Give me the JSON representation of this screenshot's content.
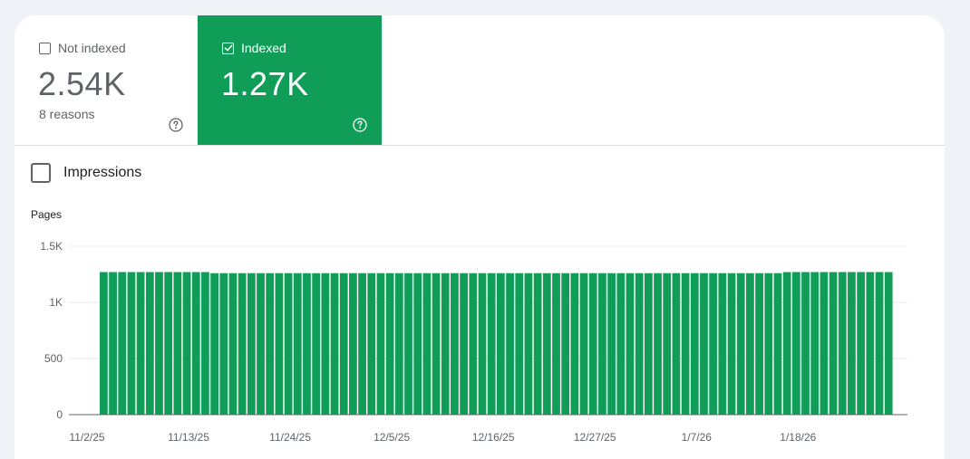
{
  "tiles": {
    "not_indexed": {
      "label": "Not indexed",
      "value": "2.54K",
      "sub": "8 reasons"
    },
    "indexed": {
      "label": "Indexed",
      "value": "1.27K"
    }
  },
  "impressions": {
    "label": "Impressions"
  },
  "colors": {
    "accent": "#0f9d58",
    "text_muted": "#5f6368"
  },
  "chart_data": {
    "type": "bar",
    "ylabel": "Pages",
    "ylim": [
      0,
      1500
    ],
    "yticks": [
      0,
      500,
      1000,
      1500
    ],
    "ytick_labels": [
      "0",
      "500",
      "1K",
      "1.5K"
    ],
    "x_tick_labels": [
      "11/2/25",
      "11/13/25",
      "11/24/25",
      "12/5/25",
      "12/16/25",
      "12/27/25",
      "1/7/26",
      "1/18/26"
    ],
    "categories": [
      "11/3/25",
      "11/4/25",
      "11/5/25",
      "11/6/25",
      "11/7/25",
      "11/8/25",
      "11/9/25",
      "11/10/25",
      "11/11/25",
      "11/12/25",
      "11/13/25",
      "11/14/25",
      "11/15/25",
      "11/16/25",
      "11/17/25",
      "11/18/25",
      "11/19/25",
      "11/20/25",
      "11/21/25",
      "11/22/25",
      "11/23/25",
      "11/24/25",
      "11/25/25",
      "11/26/25",
      "11/27/25",
      "11/28/25",
      "11/29/25",
      "11/30/25",
      "12/1/25",
      "12/2/25",
      "12/3/25",
      "12/4/25",
      "12/5/25",
      "12/6/25",
      "12/7/25",
      "12/8/25",
      "12/9/25",
      "12/10/25",
      "12/11/25",
      "12/12/25",
      "12/13/25",
      "12/14/25",
      "12/15/25",
      "12/16/25",
      "12/17/25",
      "12/18/25",
      "12/19/25",
      "12/20/25",
      "12/21/25",
      "12/22/25",
      "12/23/25",
      "12/24/25",
      "12/25/25",
      "12/26/25",
      "12/27/25",
      "12/28/25",
      "12/29/25",
      "12/30/25",
      "12/31/25",
      "1/1/26",
      "1/2/26",
      "1/3/26",
      "1/4/26",
      "1/5/26",
      "1/6/26",
      "1/7/26",
      "1/8/26",
      "1/9/26",
      "1/10/26",
      "1/11/26",
      "1/12/26",
      "1/13/26",
      "1/14/26",
      "1/15/26",
      "1/16/26",
      "1/17/26",
      "1/18/26",
      "1/19/26",
      "1/20/26",
      "1/21/26",
      "1/22/26",
      "1/23/26",
      "1/24/26",
      "1/25/26",
      "1/26/26",
      "1/27/26"
    ],
    "values": [
      1270,
      1270,
      1270,
      1270,
      1270,
      1270,
      1270,
      1270,
      1270,
      1270,
      1270,
      1270,
      1260,
      1260,
      1260,
      1260,
      1260,
      1260,
      1260,
      1260,
      1260,
      1260,
      1260,
      1260,
      1260,
      1260,
      1260,
      1260,
      1260,
      1260,
      1260,
      1260,
      1260,
      1260,
      1260,
      1260,
      1260,
      1260,
      1260,
      1260,
      1260,
      1260,
      1260,
      1260,
      1260,
      1260,
      1260,
      1260,
      1260,
      1260,
      1260,
      1260,
      1260,
      1260,
      1260,
      1260,
      1260,
      1260,
      1260,
      1260,
      1260,
      1260,
      1260,
      1260,
      1260,
      1260,
      1260,
      1260,
      1260,
      1260,
      1260,
      1260,
      1260,
      1260,
      1270,
      1270,
      1270,
      1270,
      1270,
      1270,
      1270,
      1270,
      1270,
      1270,
      1270,
      1270
    ]
  }
}
